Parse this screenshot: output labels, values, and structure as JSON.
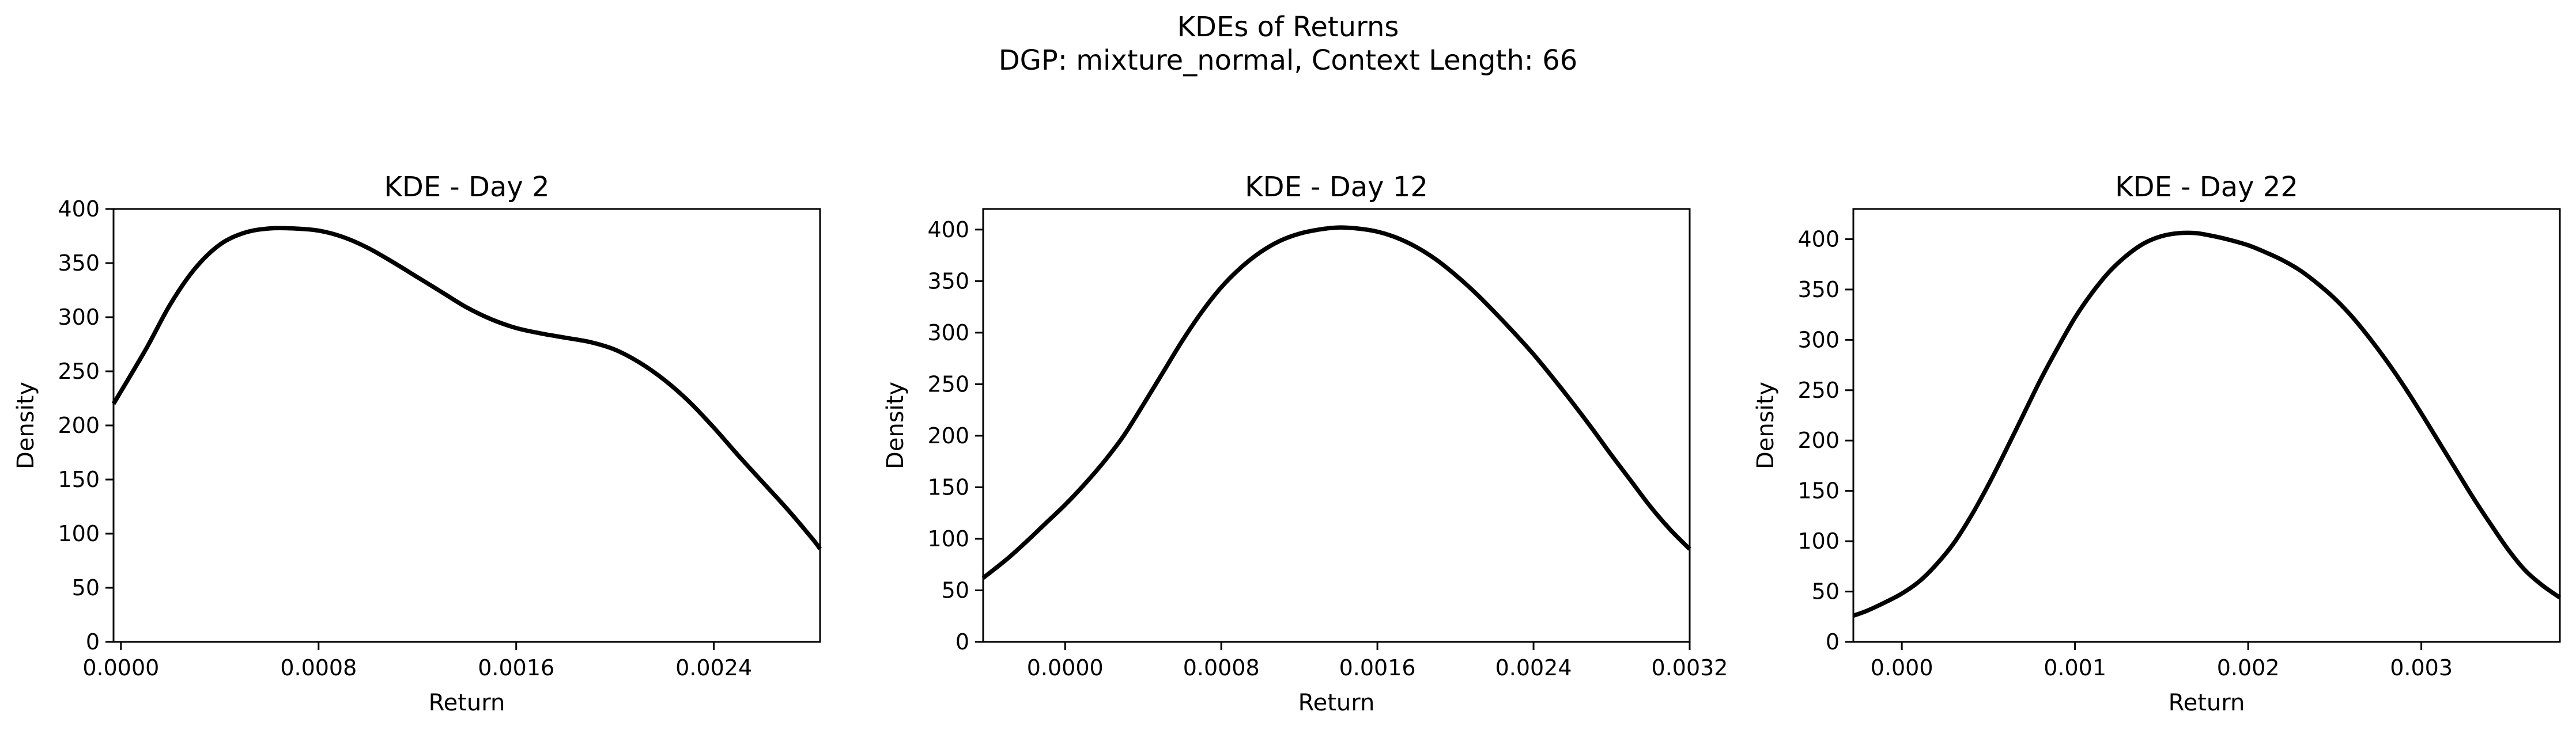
{
  "figure": {
    "suptitle_line1": "KDEs of Returns",
    "suptitle_line2": "DGP: mixture_normal, Context Length: 66"
  },
  "chart_data": [
    {
      "type": "line",
      "title": "KDE - Day 2",
      "xlabel": "Return",
      "ylabel": "Density",
      "xlim": [
        -3e-05,
        0.00283
      ],
      "ylim": [
        0,
        400
      ],
      "xticks": [
        0.0,
        0.0008,
        0.0016,
        0.0024
      ],
      "xtick_labels": [
        "0.0000",
        "0.0008",
        "0.0016",
        "0.0024"
      ],
      "yticks": [
        0,
        50,
        100,
        150,
        200,
        250,
        300,
        350,
        400
      ],
      "ytick_labels": [
        "0",
        "50",
        "100",
        "150",
        "200",
        "250",
        "300",
        "350",
        "400"
      ],
      "grid": false,
      "line_color": "#000000",
      "series": [
        {
          "x": [
            -3e-05,
            0.0001,
            0.0002,
            0.0003,
            0.0004,
            0.0005,
            0.0006,
            0.0007,
            0.0008,
            0.0009,
            0.001,
            0.0011,
            0.0012,
            0.0013,
            0.0014,
            0.0015,
            0.0016,
            0.0017,
            0.0018,
            0.0019,
            0.002,
            0.0021,
            0.0022,
            0.0023,
            0.0024,
            0.0025,
            0.0026,
            0.0027,
            0.0028,
            0.00283
          ],
          "y": [
            220,
            270,
            312,
            345,
            367,
            378,
            382,
            382,
            380,
            374,
            364,
            351,
            337,
            323,
            309,
            298,
            290,
            285,
            281,
            277,
            270,
            258,
            242,
            222,
            198,
            172,
            147,
            122,
            95,
            86
          ]
        }
      ]
    },
    {
      "type": "line",
      "title": "KDE - Day 12",
      "xlabel": "Return",
      "ylabel": "Density",
      "xlim": [
        -0.00042,
        0.0032
      ],
      "ylim": [
        0,
        420
      ],
      "xticks": [
        0.0,
        0.0008,
        0.0016,
        0.0024,
        0.0032
      ],
      "xtick_labels": [
        "0.0000",
        "0.0008",
        "0.0016",
        "0.0024",
        "0.0032"
      ],
      "yticks": [
        0,
        50,
        100,
        150,
        200,
        250,
        300,
        350,
        400
      ],
      "ytick_labels": [
        "0",
        "50",
        "100",
        "150",
        "200",
        "250",
        "300",
        "350",
        "400"
      ],
      "grid": false,
      "line_color": "#000000",
      "series": [
        {
          "x": [
            -0.00042,
            -0.0003,
            -0.0002,
            -0.0001,
            0.0,
            0.0001,
            0.0002,
            0.0003,
            0.0004,
            0.0005,
            0.0006,
            0.0007,
            0.0008,
            0.0009,
            0.001,
            0.0011,
            0.0012,
            0.0013,
            0.0014,
            0.0015,
            0.0016,
            0.0017,
            0.0018,
            0.0019,
            0.002,
            0.0021,
            0.0022,
            0.0023,
            0.0024,
            0.0025,
            0.0026,
            0.0027,
            0.0028,
            0.0029,
            0.003,
            0.0031,
            0.0032
          ],
          "y": [
            62,
            80,
            97,
            115,
            133,
            153,
            175,
            200,
            230,
            261,
            292,
            320,
            344,
            363,
            378,
            389,
            396,
            400,
            402,
            401,
            398,
            392,
            383,
            371,
            356,
            339,
            320,
            300,
            279,
            256,
            232,
            207,
            181,
            156,
            131,
            109,
            90
          ]
        }
      ]
    },
    {
      "type": "line",
      "title": "KDE - Day 22",
      "xlabel": "Return",
      "ylabel": "Density",
      "xlim": [
        -0.00028,
        0.0038
      ],
      "ylim": [
        0,
        430
      ],
      "xticks": [
        0.0,
        0.001,
        0.002,
        0.003
      ],
      "xtick_labels": [
        "0.000",
        "0.001",
        "0.002",
        "0.003"
      ],
      "yticks": [
        0,
        50,
        100,
        150,
        200,
        250,
        300,
        350,
        400
      ],
      "ytick_labels": [
        "0",
        "50",
        "100",
        "150",
        "200",
        "250",
        "300",
        "350",
        "400"
      ],
      "grid": false,
      "line_color": "#000000",
      "series": [
        {
          "x": [
            -0.00028,
            -0.0002,
            -0.0001,
            0.0,
            0.0001,
            0.0002,
            0.0003,
            0.0004,
            0.0005,
            0.0006,
            0.0007,
            0.0008,
            0.0009,
            0.001,
            0.0011,
            0.0012,
            0.0013,
            0.0014,
            0.0015,
            0.0016,
            0.0017,
            0.0018,
            0.0019,
            0.002,
            0.0021,
            0.0022,
            0.0023,
            0.0024,
            0.0025,
            0.0026,
            0.0027,
            0.0028,
            0.0029,
            0.003,
            0.0031,
            0.0032,
            0.0033,
            0.0034,
            0.0035,
            0.0036,
            0.0037,
            0.0038
          ],
          "y": [
            26,
            31,
            39,
            48,
            60,
            77,
            98,
            125,
            156,
            190,
            225,
            260,
            292,
            322,
            347,
            368,
            384,
            396,
            403,
            406,
            406,
            403,
            399,
            394,
            387,
            379,
            369,
            356,
            341,
            323,
            302,
            279,
            254,
            227,
            199,
            171,
            143,
            117,
            92,
            71,
            56,
            44
          ]
        }
      ]
    }
  ]
}
